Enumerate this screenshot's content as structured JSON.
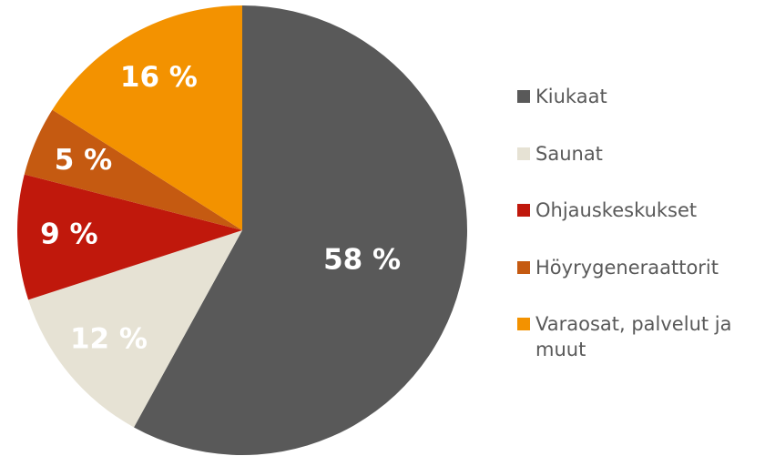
{
  "chart_data": {
    "type": "pie",
    "categories": [
      "Kiukaat",
      "Saunat",
      "Ohjauskeskukset",
      "Höyrygeneraattorit",
      "Varaosat, palvelut ja muut"
    ],
    "values": [
      58,
      12,
      9,
      5,
      16
    ],
    "value_labels": [
      "58 %",
      "12 %",
      "9 %",
      "5 %",
      "16 %"
    ],
    "colors": [
      "#595959",
      "#e6e2d4",
      "#c0180c",
      "#c55a11",
      "#f39200"
    ],
    "legend": "right"
  }
}
